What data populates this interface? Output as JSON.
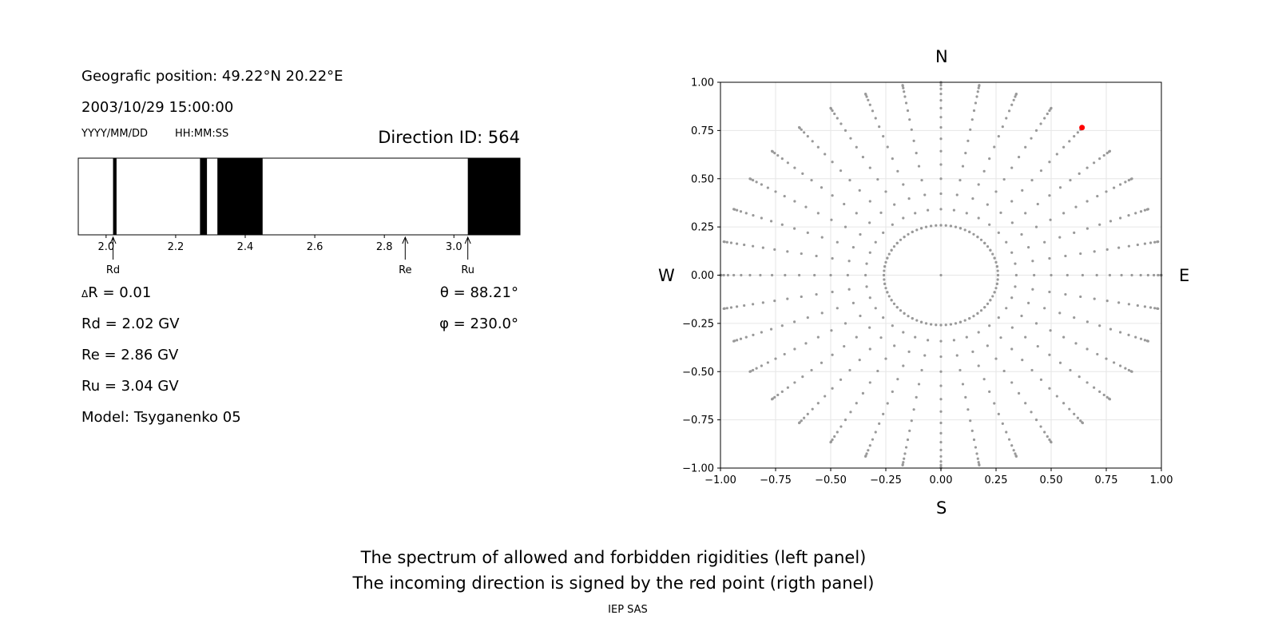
{
  "info": {
    "geo_position": "Geografic position: 49.22°N 20.22°E",
    "datetime": "2003/10/29 15:00:00",
    "date_format": "YYYY/MM/DD",
    "time_format": "HH:MM:SS",
    "direction_id": "Direction ID: 564",
    "delta_r": "R = 0.01",
    "delta_symbol": "Δ",
    "rd": "Rd = 2.02 GV",
    "re": "Re = 2.86 GV",
    "ru": "Ru = 3.04 GV",
    "model": "Model: Tsyganenko 05",
    "theta": "θ = 88.21°",
    "phi": "φ = 230.0°"
  },
  "compass": {
    "n": "N",
    "s": "S",
    "w": "W",
    "e": "E"
  },
  "caption": {
    "line1": "The spectrum of allowed and forbidden rigidities (left panel)",
    "line2": "The incoming direction is signed by the red point (rigth panel)",
    "credit": "IEP SAS"
  },
  "chart_data": [
    {
      "type": "bar",
      "description_role": "rigidity spectrum",
      "xlim": [
        1.92,
        3.19
      ],
      "xticks": [
        2.0,
        2.2,
        2.4,
        2.6,
        2.8,
        3.0
      ],
      "xtick_labels": [
        "2.0",
        "2.2",
        "2.4",
        "2.6",
        "2.8",
        "3.0"
      ],
      "forbidden_bands": [
        [
          2.02,
          2.03
        ],
        [
          2.27,
          2.29
        ],
        [
          2.32,
          2.45
        ],
        [
          3.04,
          3.19
        ]
      ],
      "markers": [
        {
          "label": "Rd",
          "value": 2.02
        },
        {
          "label": "Re",
          "value": 2.86
        },
        {
          "label": "Ru",
          "value": 3.04
        }
      ],
      "colors": {
        "forbidden": "#000000",
        "allowed": "#ffffff"
      }
    },
    {
      "type": "scatter",
      "xlim": [
        -1.0,
        1.0
      ],
      "ylim": [
        -1.0,
        1.0
      ],
      "xticks": [
        -1.0,
        -0.75,
        -0.5,
        -0.25,
        0.0,
        0.25,
        0.5,
        0.75,
        1.0
      ],
      "xtick_labels": [
        "−1.00",
        "−0.75",
        "−0.50",
        "−0.25",
        "0.00",
        "0.25",
        "0.50",
        "0.75",
        "1.00"
      ],
      "yticks": [
        -1.0,
        -0.75,
        -0.5,
        -0.25,
        0.0,
        0.25,
        0.5,
        0.75,
        1.0
      ],
      "ytick_labels": [
        "−1.00",
        "−0.75",
        "−0.50",
        "−0.25",
        "0.00",
        "0.25",
        "0.50",
        "0.75",
        "1.00"
      ],
      "grid": true,
      "grid_series": {
        "azimuth_step_deg": 10,
        "zenith_inner_deg": 15,
        "zenith_outer_deg": 90,
        "zenith_step_deg": 5,
        "color": "#999999"
      },
      "highlight_point": {
        "x": 0.64,
        "y": 0.765,
        "color": "#ff0000"
      }
    }
  ]
}
